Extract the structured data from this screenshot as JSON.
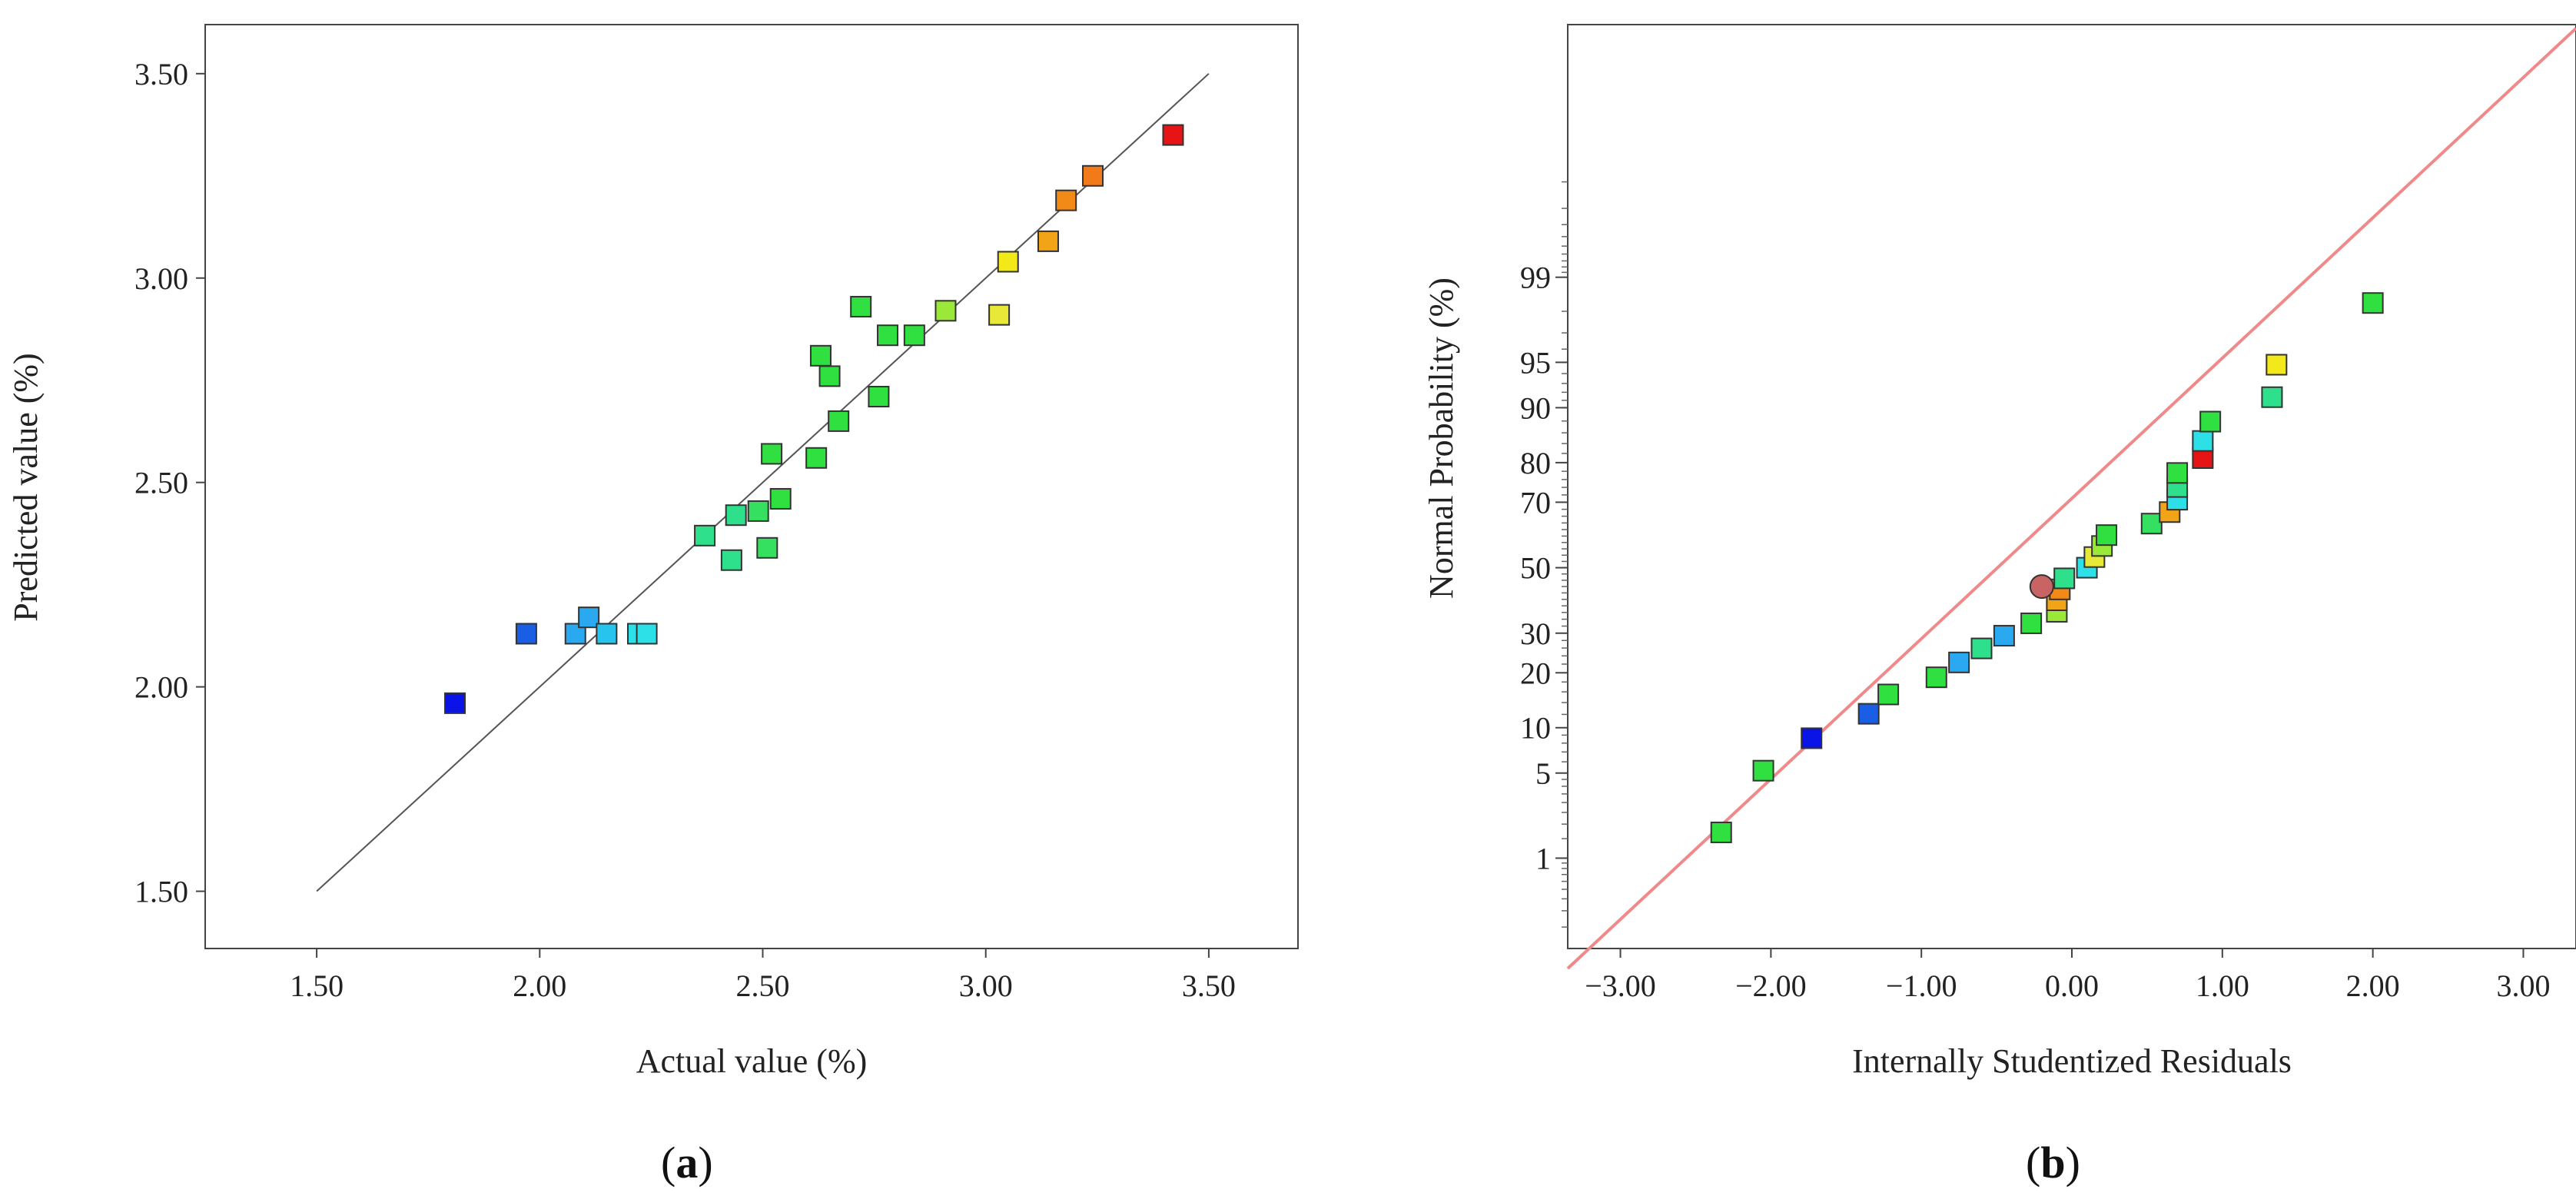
{
  "chart_data": [
    {
      "type": "scatter",
      "panel_label": "(a)",
      "panel_letter": "a",
      "xlabel": "Actual value (%)",
      "ylabel": "Predicted value (%)",
      "xlim": [
        1.25,
        3.7
      ],
      "ylim": [
        1.36,
        3.62
      ],
      "xticks": [
        1.5,
        2.0,
        2.5,
        3.0,
        3.5
      ],
      "xtick_labels": [
        "1.50",
        "2.00",
        "2.50",
        "3.00",
        "3.50"
      ],
      "yticks": [
        1.5,
        2.0,
        2.5,
        3.0,
        3.5
      ],
      "ytick_labels": [
        "1.50",
        "2.00",
        "2.50",
        "3.00",
        "3.50"
      ],
      "reference_line": {
        "x": [
          1.5,
          3.5
        ],
        "y": [
          1.5,
          3.5
        ],
        "color": "#555555"
      },
      "points": [
        {
          "x": 1.81,
          "y": 1.96,
          "color": "#0a14e6"
        },
        {
          "x": 1.97,
          "y": 2.13,
          "color": "#1a5ee6"
        },
        {
          "x": 2.08,
          "y": 2.13,
          "color": "#2aa8f0"
        },
        {
          "x": 2.11,
          "y": 2.17,
          "color": "#2aa8f0"
        },
        {
          "x": 2.15,
          "y": 2.13,
          "color": "#27c4ee"
        },
        {
          "x": 2.22,
          "y": 2.13,
          "color": "#2de0e8"
        },
        {
          "x": 2.24,
          "y": 2.13,
          "color": "#2de0e8"
        },
        {
          "x": 2.37,
          "y": 2.37,
          "color": "#2ee08c"
        },
        {
          "x": 2.43,
          "y": 2.31,
          "color": "#2ee08c"
        },
        {
          "x": 2.44,
          "y": 2.42,
          "color": "#2ee08c"
        },
        {
          "x": 2.49,
          "y": 2.43,
          "color": "#35e060"
        },
        {
          "x": 2.51,
          "y": 2.34,
          "color": "#35e060"
        },
        {
          "x": 2.52,
          "y": 2.57,
          "color": "#30e040"
        },
        {
          "x": 2.54,
          "y": 2.46,
          "color": "#30e040"
        },
        {
          "x": 2.62,
          "y": 2.56,
          "color": "#30e040"
        },
        {
          "x": 2.63,
          "y": 2.81,
          "color": "#30e040"
        },
        {
          "x": 2.65,
          "y": 2.76,
          "color": "#30e040"
        },
        {
          "x": 2.67,
          "y": 2.65,
          "color": "#30e040"
        },
        {
          "x": 2.72,
          "y": 2.93,
          "color": "#30e040"
        },
        {
          "x": 2.76,
          "y": 2.71,
          "color": "#30e040"
        },
        {
          "x": 2.78,
          "y": 2.86,
          "color": "#30e040"
        },
        {
          "x": 2.84,
          "y": 2.86,
          "color": "#30e040"
        },
        {
          "x": 2.91,
          "y": 2.92,
          "color": "#9ae838"
        },
        {
          "x": 3.03,
          "y": 2.91,
          "color": "#e8e838"
        },
        {
          "x": 3.05,
          "y": 3.04,
          "color": "#f2e81a"
        },
        {
          "x": 3.14,
          "y": 3.09,
          "color": "#f2a418"
        },
        {
          "x": 3.18,
          "y": 3.19,
          "color": "#f28a18"
        },
        {
          "x": 3.24,
          "y": 3.25,
          "color": "#f27a18"
        },
        {
          "x": 3.42,
          "y": 3.35,
          "color": "#e61414"
        }
      ]
    },
    {
      "type": "scatter",
      "panel_label": "(b)",
      "panel_letter": "b",
      "xlabel": "Internally Studentized Residuals",
      "ylabel": "Normal Probability (%)",
      "y_scale": "normal-probability",
      "xlim": [
        -3.35,
        3.35
      ],
      "ylim_z": [
        -3.05,
        4.35
      ],
      "xticks": [
        -3,
        -2,
        -1,
        0,
        1,
        2,
        3
      ],
      "xtick_labels": [
        "−3.00",
        "−2.00",
        "−1.00",
        "0.00",
        "1.00",
        "2.00",
        "3.00"
      ],
      "yticks": [
        1,
        5,
        10,
        20,
        30,
        50,
        70,
        80,
        90,
        95,
        99
      ],
      "ytick_labels": [
        "1",
        "5",
        "10",
        "20",
        "30",
        "50",
        "70",
        "80",
        "90",
        "95",
        "99"
      ],
      "reference_line": {
        "x": [
          -3.35,
          3.35
        ],
        "z": [
          -3.21,
          4.32
        ],
        "color": "#f08a8a"
      },
      "points": [
        {
          "x": -2.33,
          "p": 1.7,
          "color": "#30e040",
          "shape": "square"
        },
        {
          "x": -2.05,
          "p": 5.2,
          "color": "#30e040",
          "shape": "square"
        },
        {
          "x": -1.73,
          "p": 8.6,
          "color": "#0a14e6",
          "shape": "square"
        },
        {
          "x": -1.35,
          "p": 12.1,
          "color": "#1a5ee6",
          "shape": "square"
        },
        {
          "x": -1.22,
          "p": 15.5,
          "color": "#30e040",
          "shape": "square"
        },
        {
          "x": -0.9,
          "p": 19.0,
          "color": "#30e040",
          "shape": "square"
        },
        {
          "x": -0.75,
          "p": 22.4,
          "color": "#2aa8f0",
          "shape": "square"
        },
        {
          "x": -0.6,
          "p": 25.9,
          "color": "#2ee08c",
          "shape": "square"
        },
        {
          "x": -0.45,
          "p": 29.3,
          "color": "#2aa8f0",
          "shape": "square"
        },
        {
          "x": -0.27,
          "p": 32.8,
          "color": "#30e040",
          "shape": "square"
        },
        {
          "x": -0.1,
          "p": 36.2,
          "color": "#9ae838",
          "shape": "square"
        },
        {
          "x": -0.1,
          "p": 39.7,
          "color": "#f2a418",
          "shape": "square"
        },
        {
          "x": -0.08,
          "p": 43.1,
          "color": "#f28a18",
          "shape": "square"
        },
        {
          "x": -0.2,
          "p": 44.0,
          "color": "#c86464",
          "shape": "circle"
        },
        {
          "x": -0.05,
          "p": 46.6,
          "color": "#2ee08c",
          "shape": "square"
        },
        {
          "x": 0.1,
          "p": 50.0,
          "color": "#2de0e8",
          "shape": "square"
        },
        {
          "x": 0.15,
          "p": 53.4,
          "color": "#e8e838",
          "shape": "square"
        },
        {
          "x": 0.2,
          "p": 56.9,
          "color": "#9ae838",
          "shape": "square"
        },
        {
          "x": 0.23,
          "p": 60.3,
          "color": "#30e040",
          "shape": "square"
        },
        {
          "x": 0.53,
          "p": 63.8,
          "color": "#35e060",
          "shape": "square"
        },
        {
          "x": 0.65,
          "p": 67.2,
          "color": "#f2a418",
          "shape": "square"
        },
        {
          "x": 0.7,
          "p": 70.7,
          "color": "#2de0e8",
          "shape": "square"
        },
        {
          "x": 0.7,
          "p": 74.1,
          "color": "#2ee08c",
          "shape": "square"
        },
        {
          "x": 0.7,
          "p": 77.6,
          "color": "#30e040",
          "shape": "square"
        },
        {
          "x": 0.87,
          "p": 81.0,
          "color": "#e61414",
          "shape": "square"
        },
        {
          "x": 0.87,
          "p": 84.5,
          "color": "#2de0e8",
          "shape": "square"
        },
        {
          "x": 0.92,
          "p": 87.9,
          "color": "#30e040",
          "shape": "square"
        },
        {
          "x": 1.33,
          "p": 91.4,
          "color": "#2ee08c",
          "shape": "square"
        },
        {
          "x": 1.36,
          "p": 94.8,
          "color": "#f2e81a",
          "shape": "square"
        },
        {
          "x": 2.0,
          "p": 98.3,
          "color": "#30e040",
          "shape": "square"
        }
      ]
    }
  ]
}
